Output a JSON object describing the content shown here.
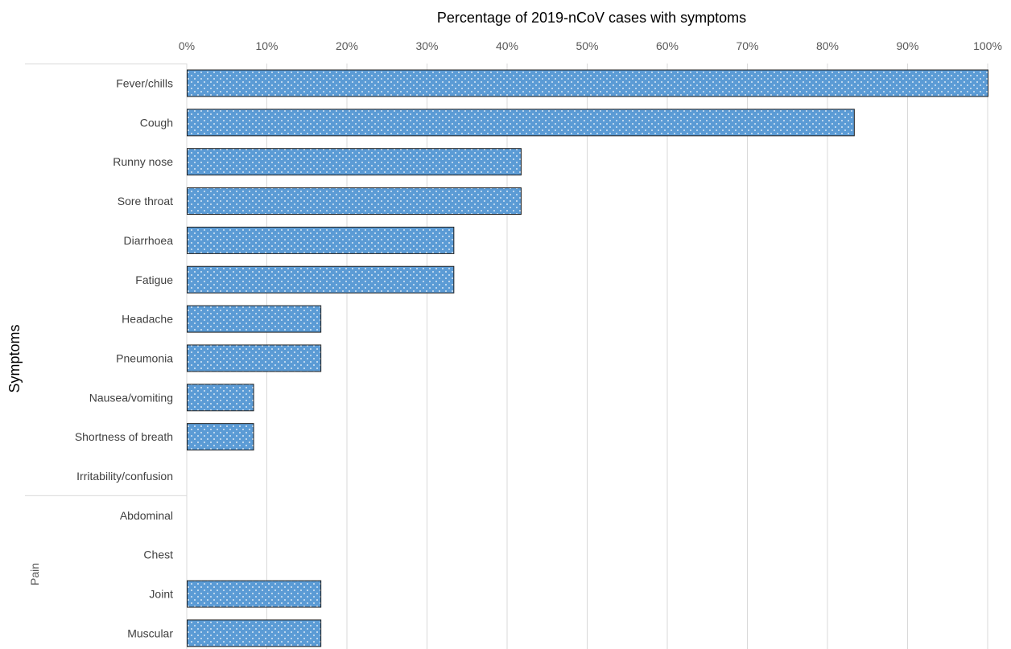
{
  "chart_data": {
    "type": "bar",
    "orientation": "horizontal",
    "title": "Percentage of 2019-nCoV cases with symptoms",
    "xlabel": "Percentage of 2019-nCoV cases with symptoms",
    "ylabel": "Symptoms",
    "xlim": [
      0,
      100
    ],
    "x_ticks": [
      "0%",
      "10%",
      "20%",
      "30%",
      "40%",
      "50%",
      "60%",
      "70%",
      "80%",
      "90%",
      "100%"
    ],
    "x_axis_position": "top",
    "grid": true,
    "bar_color": "#5b9bd5",
    "bar_pattern": "white-dots",
    "categories": [
      "Fever/chills",
      "Cough",
      "Runny nose",
      "Sore throat",
      "Diarrhoea",
      "Fatigue",
      "Headache",
      "Pneumonia",
      "Nausea/vomiting",
      "Shortness of breath",
      "Irritability/confusion",
      "Abdominal",
      "Chest",
      "Joint",
      "Muscular"
    ],
    "values": [
      100,
      83.3,
      41.7,
      41.7,
      33.3,
      33.3,
      16.7,
      16.7,
      8.3,
      8.3,
      0,
      0,
      0,
      16.7,
      16.7
    ],
    "groups": [
      {
        "name": "Symptoms",
        "categories": [
          "Fever/chills",
          "Cough",
          "Runny nose",
          "Sore throat",
          "Diarrhoea",
          "Fatigue",
          "Headache",
          "Pneumonia",
          "Nausea/vomiting",
          "Shortness of breath",
          "Irritability/confusion"
        ]
      },
      {
        "name": "Pain",
        "categories": [
          "Abdominal",
          "Chest",
          "Joint",
          "Muscular"
        ]
      }
    ]
  }
}
